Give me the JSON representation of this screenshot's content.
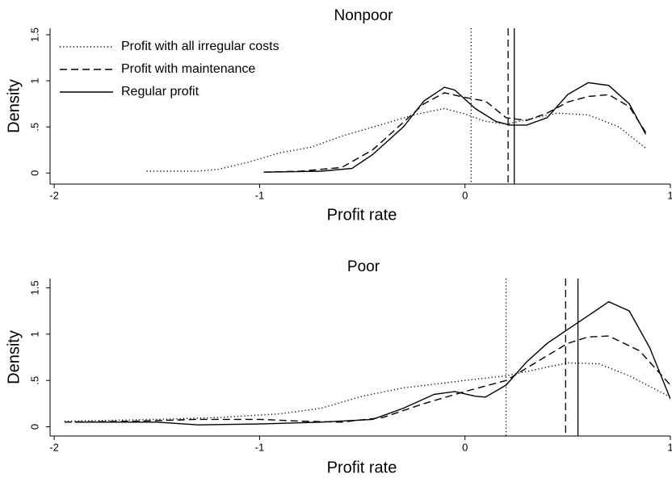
{
  "chart_data": [
    {
      "type": "line",
      "title": "Nonpoor",
      "x_label": "Profit rate",
      "y_label": "Density",
      "xlim": [
        -2.02,
        1.0
      ],
      "ylim": [
        -0.12,
        1.57
      ],
      "xticks": [
        -2,
        -1,
        0,
        1
      ],
      "yticks": [
        0,
        {
          "value": 0.5,
          "label": ".5"
        },
        1,
        1.5
      ],
      "legend": "upper left",
      "series": [
        {
          "name": "Profit with all irregular costs",
          "color": "#000",
          "dash": "dotted",
          "x": [
            -1.55,
            -1.3,
            -1.2,
            -1.05,
            -0.9,
            -0.75,
            -0.6,
            -0.4,
            -0.25,
            -0.1,
            0,
            0.1,
            0.2,
            0.3,
            0.45,
            0.6,
            0.75,
            0.88
          ],
          "values": [
            0.02,
            0.02,
            0.04,
            0.12,
            0.22,
            0.28,
            0.4,
            0.53,
            0.63,
            0.7,
            0.64,
            0.56,
            0.53,
            0.58,
            0.65,
            0.63,
            0.5,
            0.27
          ]
        },
        {
          "name": "Profit with maintenance",
          "color": "#000",
          "dash": "dashed",
          "x": [
            -0.98,
            -0.8,
            -0.6,
            -0.45,
            -0.3,
            -0.2,
            -0.1,
            0,
            0.1,
            0.2,
            0.3,
            0.4,
            0.5,
            0.6,
            0.7,
            0.8,
            0.88
          ],
          "values": [
            0.01,
            0.02,
            0.06,
            0.25,
            0.55,
            0.75,
            0.87,
            0.82,
            0.78,
            0.6,
            0.57,
            0.65,
            0.77,
            0.83,
            0.85,
            0.72,
            0.44
          ]
        },
        {
          "name": "Regular profit",
          "color": "#000",
          "dash": "solid",
          "x": [
            -0.98,
            -0.7,
            -0.55,
            -0.45,
            -0.3,
            -0.2,
            -0.1,
            -0.05,
            0.05,
            0.15,
            0.22,
            0.3,
            0.4,
            0.5,
            0.6,
            0.7,
            0.8,
            0.88
          ],
          "values": [
            0.01,
            0.02,
            0.05,
            0.2,
            0.5,
            0.78,
            0.93,
            0.9,
            0.7,
            0.56,
            0.52,
            0.52,
            0.6,
            0.85,
            0.98,
            0.95,
            0.75,
            0.42
          ]
        }
      ],
      "vlines": [
        {
          "value": 0.03,
          "dash": "dotted"
        },
        {
          "value": 0.21,
          "dash": "dashed"
        },
        {
          "value": 0.24,
          "dash": "solid"
        }
      ]
    },
    {
      "type": "line",
      "title": "Poor",
      "x_label": "Profit rate",
      "y_label": "Density",
      "xlim": [
        -2.02,
        1.0
      ],
      "ylim": [
        -0.1,
        1.6
      ],
      "xticks": [
        -2,
        -1,
        0,
        1
      ],
      "yticks": [
        0,
        {
          "value": 0.5,
          "label": ".5"
        },
        1,
        1.5
      ],
      "series": [
        {
          "color": "#000",
          "dash": "dotted",
          "x": [
            -1.95,
            -1.5,
            -1.2,
            -0.9,
            -0.7,
            -0.5,
            -0.3,
            0,
            0.2,
            0.35,
            0.5,
            0.65,
            0.8,
            1.0
          ],
          "values": [
            0.06,
            0.08,
            0.1,
            0.14,
            0.2,
            0.33,
            0.42,
            0.5,
            0.55,
            0.62,
            0.69,
            0.68,
            0.55,
            0.32
          ]
        },
        {
          "color": "#000",
          "dash": "dashed",
          "x": [
            -1.95,
            -1.6,
            -1.3,
            -1.0,
            -0.8,
            -0.6,
            -0.4,
            -0.2,
            0,
            0.2,
            0.35,
            0.5,
            0.6,
            0.7,
            0.85,
            1.0
          ],
          "values": [
            0.05,
            0.06,
            0.08,
            0.08,
            0.06,
            0.05,
            0.1,
            0.25,
            0.38,
            0.5,
            0.7,
            0.9,
            0.97,
            0.98,
            0.82,
            0.45
          ]
        },
        {
          "color": "#000",
          "dash": "solid",
          "x": [
            -1.9,
            -1.5,
            -1.3,
            -1.0,
            -0.7,
            -0.45,
            -0.3,
            -0.15,
            -0.05,
            0.05,
            0.1,
            0.2,
            0.3,
            0.4,
            0.5,
            0.6,
            0.7,
            0.8,
            0.9,
            1.0
          ],
          "values": [
            0.05,
            0.05,
            0.02,
            0.03,
            0.05,
            0.08,
            0.2,
            0.35,
            0.38,
            0.33,
            0.32,
            0.45,
            0.7,
            0.9,
            1.05,
            1.2,
            1.35,
            1.25,
            0.85,
            0.3
          ]
        }
      ],
      "vlines": [
        {
          "value": 0.2,
          "dash": "dotted"
        },
        {
          "value": 0.49,
          "dash": "dashed"
        },
        {
          "value": 0.55,
          "dash": "solid"
        }
      ]
    }
  ]
}
